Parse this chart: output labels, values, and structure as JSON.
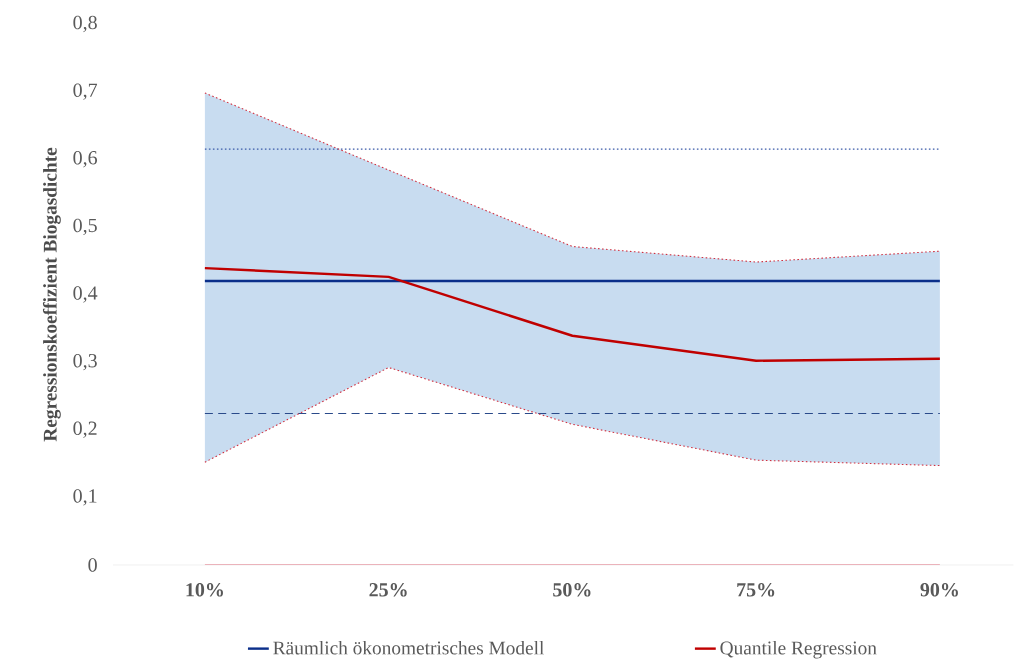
{
  "chart_data": {
    "type": "line",
    "ylabel": "Regressionskoeffizient Biogasdichte",
    "categories": [
      "10%",
      "25%",
      "50%",
      "75%",
      "90%"
    ],
    "series": [
      {
        "name": "Räumlich ökonometrisches Modell",
        "color": "#0b2f8a",
        "values": [
          0.42,
          0.42,
          0.42,
          0.42,
          0.42
        ]
      },
      {
        "color": "#3a5aa8",
        "line_style": "dotted",
        "values": [
          0.615,
          0.615,
          0.615,
          0.615,
          0.615
        ]
      },
      {
        "color": "#2a4a8a",
        "line_style": "dashed",
        "values": [
          0.224,
          0.224,
          0.224,
          0.224,
          0.224
        ]
      },
      {
        "name": "Quantile Regression",
        "color": "#c00000",
        "values": [
          0.439,
          0.426,
          0.339,
          0.302,
          0.305
        ],
        "lower": [
          0.152,
          0.292,
          0.208,
          0.155,
          0.147
        ],
        "upper": [
          0.698,
          0.584,
          0.471,
          0.448,
          0.464
        ]
      },
      {
        "color": "#e07080",
        "values": [
          0,
          0,
          0,
          0,
          0
        ]
      },
      {
        "color": "#d03040",
        "line_style": "dotted",
        "values": [
          0.698,
          0.584,
          0.471,
          0.448,
          0.464
        ]
      },
      {
        "color": "#d03040",
        "line_style": "dotted",
        "values": [
          0.152,
          0.292,
          0.208,
          0.155,
          0.147
        ]
      }
    ],
    "ylim": [
      0,
      0.8
    ],
    "yticks": [
      0,
      {
        "value": 0.1,
        "label": "0,1"
      },
      {
        "value": 0.2,
        "label": "0,2"
      },
      {
        "value": 0.3,
        "label": "0,3"
      },
      {
        "value": 0.4,
        "label": "0,4"
      },
      {
        "value": 0.5,
        "label": "0,5"
      },
      {
        "value": 0.6,
        "label": "0,6"
      },
      {
        "value": 0.7,
        "label": "0,7"
      },
      {
        "value": 0.8,
        "label": "0,8"
      }
    ],
    "grid": false,
    "legend": "bottom",
    "marker": "none"
  }
}
